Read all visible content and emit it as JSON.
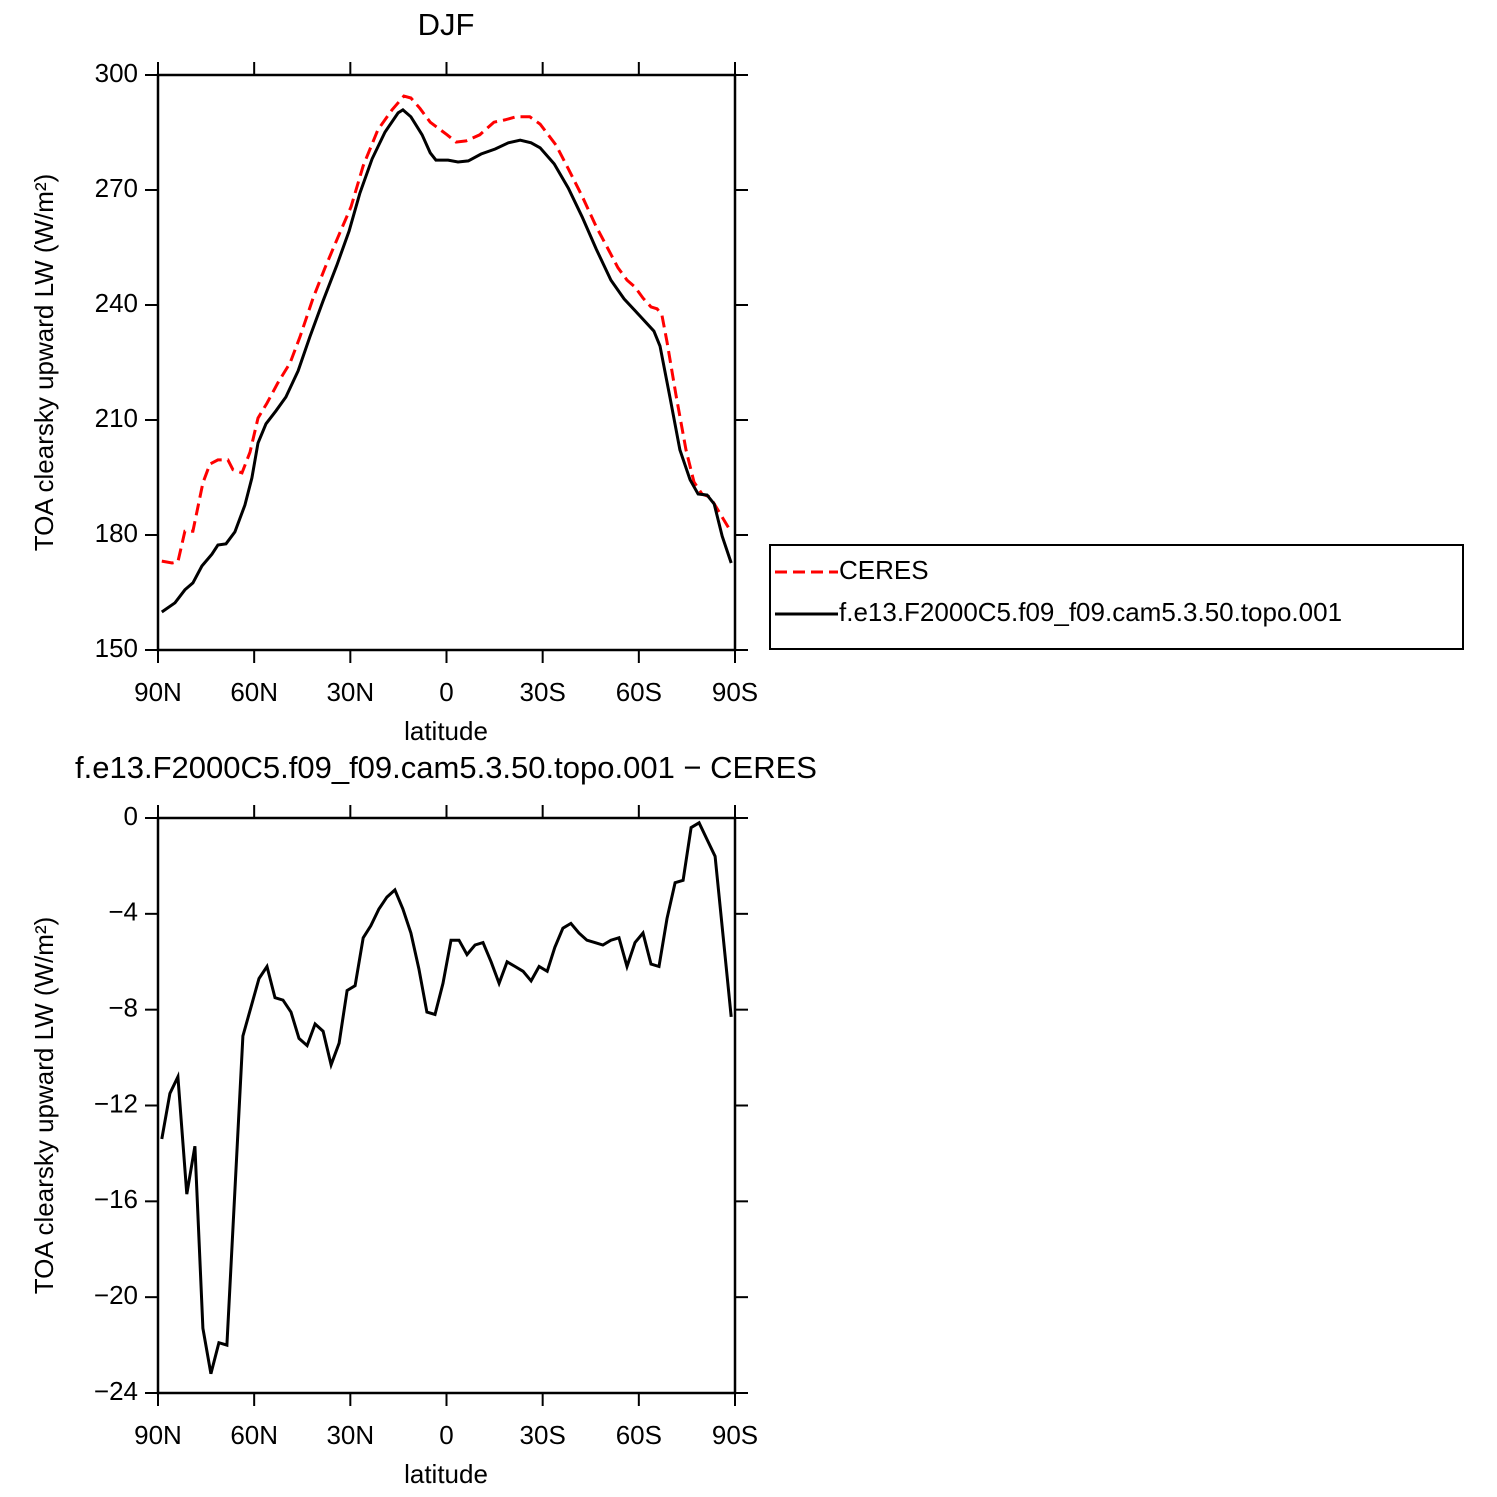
{
  "chart_data": [
    {
      "type": "line",
      "title": "DJF",
      "xlabel": "latitude",
      "ylabel": "TOA clearsky upward LW (W/m²)",
      "xlim": [
        90,
        -90
      ],
      "xticks": [
        {
          "value": 90,
          "label": "90N"
        },
        {
          "value": 60,
          "label": "60N"
        },
        {
          "value": 30,
          "label": "30N"
        },
        0,
        {
          "value": -30,
          "label": "30S"
        },
        {
          "value": -60,
          "label": "60S"
        },
        {
          "value": -90,
          "label": "90S"
        }
      ],
      "ylim": [
        150,
        300
      ],
      "yticks": [
        150,
        180,
        210,
        240,
        270,
        300
      ],
      "legend": "right",
      "series": [
        {
          "name": "CERES",
          "color": "#ff0000",
          "dash": true,
          "x": [
            88.8,
            85.6,
            83.8,
            81.6,
            79.1,
            76.0,
            73.8,
            71.3,
            68.2,
            66.6,
            63.8,
            61.3,
            58.8,
            56.0,
            52.6,
            48.8,
            45.7,
            41.6,
            37.9,
            33.2,
            29.8,
            26.0,
            21.4,
            17.0,
            13.3,
            11.1,
            8.3,
            5.1,
            -0.2,
            -3.0,
            -6.1,
            -10.4,
            -14.8,
            -18.2,
            -21.7,
            -26.0,
            -29.2,
            -34.2,
            -37.9,
            -42.3,
            -46.6,
            -50.4,
            -53.5,
            -56.3,
            -58.8,
            -61.3,
            -63.8,
            -65.7,
            -67.2,
            -68.8,
            -71.6,
            -74.7,
            -77.2,
            -79.7,
            -82.2,
            -84.7,
            -88.4
          ],
          "values": [
            173.2,
            172.7,
            173.0,
            181.0,
            181.0,
            193.6,
            198.5,
            199.6,
            199.6,
            197.0,
            196.2,
            201.6,
            210.5,
            214.4,
            219.7,
            224.9,
            231.7,
            241.8,
            249.7,
            259.0,
            265.6,
            276.3,
            285.7,
            290.9,
            294.5,
            294.0,
            291.3,
            287.7,
            284.4,
            282.5,
            282.8,
            284.4,
            287.7,
            288.3,
            289.1,
            289.1,
            287.2,
            281.7,
            275.7,
            268.4,
            260.6,
            254.6,
            249.7,
            246.5,
            244.7,
            241.8,
            239.5,
            239.0,
            237.4,
            230.4,
            216.5,
            202.2,
            193.8,
            190.7,
            189.9,
            186.5,
            181.3
          ]
        },
        {
          "name": "f.e13.F2000C5.f09_f09.cam5.3.50.topo.001",
          "color": "#000000",
          "dash": false,
          "x": [
            88.8,
            84.7,
            81.6,
            79.1,
            76.3,
            73.2,
            71.3,
            68.8,
            66.0,
            62.9,
            60.7,
            58.8,
            56.3,
            53.2,
            50.1,
            46.3,
            42.6,
            38.5,
            34.2,
            30.4,
            27.0,
            23.2,
            19.2,
            15.1,
            13.6,
            11.1,
            7.6,
            5.1,
            3.3,
            -0.5,
            -3.6,
            -6.8,
            -10.8,
            -15.2,
            -19.3,
            -23.0,
            -26.4,
            -29.2,
            -33.6,
            -38.0,
            -42.3,
            -46.7,
            -51.3,
            -55.4,
            -60.4,
            -64.7,
            -66.6,
            -69.7,
            -72.8,
            -76.0,
            -78.5,
            -81.3,
            -83.5,
            -86.0,
            -88.8
          ],
          "values": [
            159.9,
            162.3,
            165.7,
            167.5,
            171.9,
            175.0,
            177.4,
            177.7,
            180.8,
            187.8,
            194.9,
            204.0,
            209.0,
            212.4,
            216.0,
            222.8,
            231.7,
            241.1,
            250.4,
            259.3,
            269.2,
            278.1,
            285.1,
            290.1,
            290.9,
            289.1,
            284.4,
            279.7,
            277.8,
            277.8,
            277.3,
            277.6,
            279.4,
            280.7,
            282.3,
            283.0,
            282.3,
            281.0,
            276.8,
            270.5,
            263.0,
            254.6,
            246.5,
            241.6,
            237.1,
            233.2,
            229.3,
            216.0,
            202.2,
            194.4,
            190.7,
            190.4,
            188.1,
            179.7,
            172.7
          ]
        }
      ]
    },
    {
      "type": "line",
      "title": "f.e13.F2000C5.f09_f09.cam5.3.50.topo.001 − CERES",
      "xlabel": "latitude",
      "ylabel": "TOA clearsky upward LW (W/m²)",
      "xlim": [
        90,
        -90
      ],
      "xticks": [
        {
          "value": 90,
          "label": "90N"
        },
        {
          "value": 60,
          "label": "60N"
        },
        {
          "value": 30,
          "label": "30N"
        },
        0,
        {
          "value": -30,
          "label": "30S"
        },
        {
          "value": -60,
          "label": "60S"
        },
        {
          "value": -90,
          "label": "90S"
        }
      ],
      "ylim": [
        -24,
        0
      ],
      "yticks": [
        {
          "value": -24,
          "label": "−24"
        },
        {
          "value": -20,
          "label": "−20"
        },
        {
          "value": -16,
          "label": "−16"
        },
        {
          "value": -12,
          "label": "−12"
        },
        {
          "value": -8,
          "label": "−8"
        },
        {
          "value": -4,
          "label": "−4"
        },
        0
      ],
      "series": [
        {
          "color": "#000000",
          "dash": false,
          "x": [
            88.8,
            86.3,
            83.8,
            81.0,
            78.5,
            76.0,
            73.5,
            71.0,
            68.5,
            63.5,
            58.5,
            56.0,
            53.5,
            51.0,
            48.5,
            46.0,
            43.5,
            41.0,
            38.5,
            36.0,
            33.5,
            31.0,
            28.5,
            26.0,
            23.6,
            21.1,
            18.6,
            16.1,
            13.6,
            11.1,
            8.6,
            6.1,
            3.6,
            1.1,
            -1.4,
            -3.9,
            -6.4,
            -8.9,
            -11.4,
            -13.9,
            -16.4,
            -18.9,
            -21.4,
            -23.9,
            -26.4,
            -28.9,
            -31.4,
            -33.8,
            -36.3,
            -38.8,
            -41.3,
            -43.8,
            -46.3,
            -48.8,
            -51.3,
            -53.8,
            -56.3,
            -58.8,
            -61.3,
            -63.8,
            -66.3,
            -68.8,
            -71.3,
            -73.8,
            -76.3,
            -78.8,
            -81.3,
            -83.8,
            -88.8
          ],
          "values": [
            -13.4,
            -11.5,
            -10.8,
            -15.7,
            -13.7,
            -21.3,
            -23.2,
            -21.9,
            -22.0,
            -9.1,
            -6.7,
            -6.2,
            -7.5,
            -7.6,
            -8.1,
            -9.2,
            -9.5,
            -8.6,
            -8.9,
            -10.3,
            -9.4,
            -7.2,
            -7.0,
            -5.0,
            -4.5,
            -3.8,
            -3.3,
            -3.0,
            -3.8,
            -4.8,
            -6.3,
            -8.1,
            -8.2,
            -6.9,
            -5.1,
            -5.1,
            -5.7,
            -5.3,
            -5.2,
            -6.0,
            -6.9,
            -6.0,
            -6.2,
            -6.4,
            -6.8,
            -6.2,
            -6.4,
            -5.4,
            -4.6,
            -4.4,
            -4.8,
            -5.1,
            -5.2,
            -5.3,
            -5.1,
            -5.0,
            -6.2,
            -5.2,
            -4.8,
            -6.1,
            -6.2,
            -4.2,
            -2.7,
            -2.6,
            -0.4,
            -0.2,
            -0.9,
            -1.6,
            -8.3
          ]
        }
      ]
    }
  ]
}
